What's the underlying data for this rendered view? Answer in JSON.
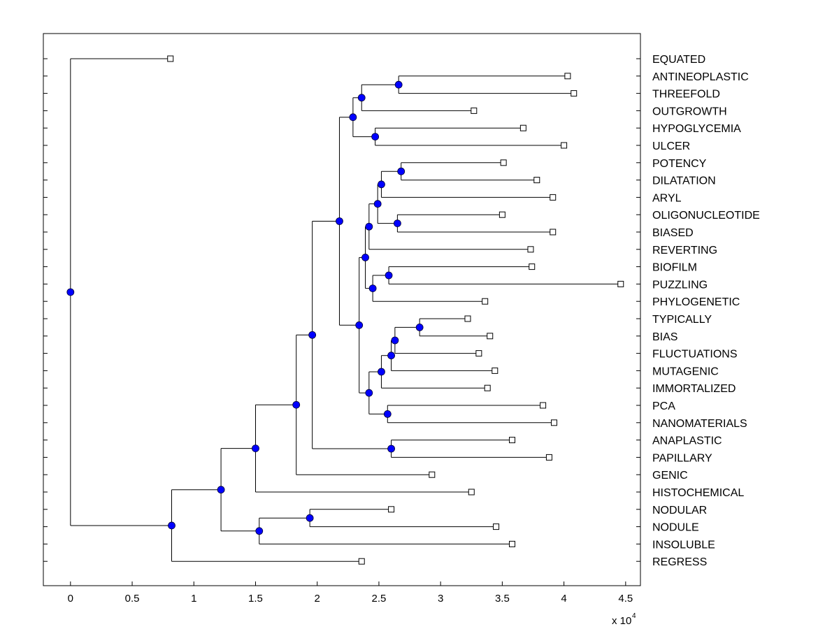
{
  "chart_data": {
    "type": "dendrogram",
    "title": "",
    "xlabel": "",
    "ylabel": "",
    "x_multiplier": "x 10",
    "x_multiplier_exponent": "4",
    "xlim": [
      -0.22,
      4.62
    ],
    "xticks": [
      0,
      0.5,
      1,
      1.5,
      2,
      2.5,
      3,
      3.5,
      4,
      4.5
    ],
    "xtick_labels": [
      "0",
      "0.5",
      "1",
      "1.5",
      "2",
      "2.5",
      "3",
      "3.5",
      "4",
      "4.5"
    ],
    "grid": false,
    "leaves": [
      {
        "label": "EQUATED",
        "x": 0.81
      },
      {
        "label": "ANTINEOPLASTIC",
        "x": 4.03
      },
      {
        "label": "THREEFOLD",
        "x": 4.08
      },
      {
        "label": "OUTGROWTH",
        "x": 3.27
      },
      {
        "label": "HYPOGLYCEMIA",
        "x": 3.67
      },
      {
        "label": "ULCER",
        "x": 4.0
      },
      {
        "label": "POTENCY",
        "x": 3.51
      },
      {
        "label": "DILATATION",
        "x": 3.78
      },
      {
        "label": "ARYL",
        "x": 3.91
      },
      {
        "label": "OLIGONUCLEOTIDE",
        "x": 3.5
      },
      {
        "label": "BIASED",
        "x": 3.91
      },
      {
        "label": "REVERTING",
        "x": 3.73
      },
      {
        "label": "BIOFILM",
        "x": 3.74
      },
      {
        "label": "PUZZLING",
        "x": 4.46
      },
      {
        "label": "PHYLOGENETIC",
        "x": 3.36
      },
      {
        "label": "TYPICALLY",
        "x": 3.22
      },
      {
        "label": "BIAS",
        "x": 3.4
      },
      {
        "label": "FLUCTUATIONS",
        "x": 3.31
      },
      {
        "label": "MUTAGENIC",
        "x": 3.44
      },
      {
        "label": "IMMORTALIZED",
        "x": 3.38
      },
      {
        "label": "PCA",
        "x": 3.83
      },
      {
        "label": "NANOMATERIALS",
        "x": 3.92
      },
      {
        "label": "ANAPLASTIC",
        "x": 3.58
      },
      {
        "label": "PAPILLARY",
        "x": 3.88
      },
      {
        "label": "GENIC",
        "x": 2.93
      },
      {
        "label": "HISTOCHEMICAL",
        "x": 3.25
      },
      {
        "label": "NODULAR",
        "x": 2.6
      },
      {
        "label": "NODULE",
        "x": 3.45
      },
      {
        "label": "INSOLUBLE",
        "x": 3.58
      },
      {
        "label": "REGRESS",
        "x": 2.36
      }
    ],
    "nodes": [
      {
        "id": "n1",
        "x": 2.66,
        "children": [
          1,
          2
        ]
      },
      {
        "id": "n2",
        "x": 2.36,
        "children": [
          "n1",
          3
        ]
      },
      {
        "id": "n3",
        "x": 2.47,
        "children": [
          4,
          5
        ]
      },
      {
        "id": "n4",
        "x": 2.29,
        "children": [
          "n2",
          "n3"
        ]
      },
      {
        "id": "n5",
        "x": 2.68,
        "children": [
          6,
          7
        ]
      },
      {
        "id": "n6",
        "x": 2.52,
        "children": [
          "n5",
          8
        ]
      },
      {
        "id": "n7",
        "x": 2.65,
        "children": [
          9,
          10
        ]
      },
      {
        "id": "n8",
        "x": 2.49,
        "children": [
          "n6",
          "n7"
        ]
      },
      {
        "id": "n9",
        "x": 2.42,
        "children": [
          "n8",
          11
        ]
      },
      {
        "id": "n10",
        "x": 2.58,
        "children": [
          12,
          13
        ]
      },
      {
        "id": "n11",
        "x": 2.45,
        "children": [
          "n10",
          14
        ]
      },
      {
        "id": "n12",
        "x": 2.39,
        "children": [
          "n9",
          "n11"
        ]
      },
      {
        "id": "n13",
        "x": 2.83,
        "children": [
          15,
          16
        ]
      },
      {
        "id": "n14",
        "x": 2.63,
        "children": [
          "n13",
          17
        ]
      },
      {
        "id": "n15",
        "x": 2.6,
        "children": [
          "n14",
          18
        ]
      },
      {
        "id": "n16",
        "x": 2.52,
        "children": [
          "n15",
          19
        ]
      },
      {
        "id": "n17",
        "x": 2.57,
        "children": [
          20,
          21
        ]
      },
      {
        "id": "n18",
        "x": 2.42,
        "children": [
          "n16",
          "n17"
        ]
      },
      {
        "id": "n19",
        "x": 2.34,
        "children": [
          "n12",
          "n18"
        ]
      },
      {
        "id": "n20",
        "x": 2.18,
        "children": [
          "n4",
          "n19"
        ]
      },
      {
        "id": "n21",
        "x": 2.6,
        "children": [
          22,
          23
        ]
      },
      {
        "id": "n22",
        "x": 1.96,
        "children": [
          "n20",
          "n21"
        ]
      },
      {
        "id": "n23",
        "x": 1.83,
        "children": [
          "n22",
          24
        ]
      },
      {
        "id": "n24",
        "x": 1.5,
        "children": [
          "n23",
          25
        ]
      },
      {
        "id": "n25",
        "x": 1.94,
        "children": [
          26,
          27
        ]
      },
      {
        "id": "n26",
        "x": 1.53,
        "children": [
          "n25",
          28
        ]
      },
      {
        "id": "n27",
        "x": 1.22,
        "children": [
          "n24",
          "n26"
        ]
      },
      {
        "id": "n28",
        "x": 0.82,
        "children": [
          "n27",
          29
        ]
      },
      {
        "id": "n29",
        "x": 0.0,
        "children": [
          0,
          "n28"
        ]
      }
    ]
  }
}
